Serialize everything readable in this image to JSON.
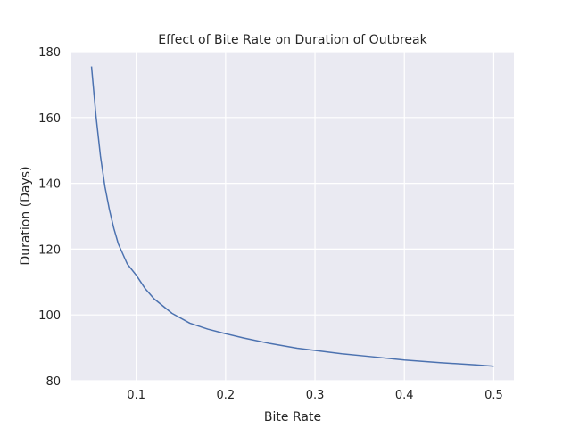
{
  "chart_data": {
    "type": "line",
    "title": "Effect of Bite Rate on Duration of Outbreak",
    "xlabel": "Bite Rate",
    "ylabel": "Duration (Days)",
    "xlim": [
      0.0275,
      0.5225
    ],
    "ylim": [
      80,
      180
    ],
    "xticks": [
      0.1,
      0.2,
      0.3,
      0.4,
      0.5
    ],
    "xtick_labels": [
      "0.1",
      "0.2",
      "0.3",
      "0.4",
      "0.5"
    ],
    "yticks": [
      80,
      100,
      120,
      140,
      160,
      180
    ],
    "ytick_labels": [
      "80",
      "100",
      "120",
      "140",
      "160",
      "180"
    ],
    "grid": true,
    "colors": {
      "background": "#eaeaf2",
      "grid": "#ffffff",
      "line": "#4c72b0"
    },
    "series": [
      {
        "x": [
          0.05,
          0.055,
          0.06,
          0.065,
          0.07,
          0.075,
          0.08,
          0.09,
          0.1,
          0.11,
          0.12,
          0.14,
          0.16,
          0.18,
          0.2,
          0.22,
          0.25,
          0.28,
          0.3,
          0.33,
          0.36,
          0.4,
          0.44,
          0.48,
          0.5
        ],
        "y": [
          175.5,
          160.5,
          148.3,
          139.0,
          132.0,
          126.3,
          121.6,
          115.5,
          112.1,
          108.0,
          104.9,
          100.5,
          97.5,
          95.7,
          94.3,
          93.0,
          91.3,
          89.9,
          89.2,
          88.2,
          87.4,
          86.3,
          85.5,
          84.8,
          84.4
        ]
      }
    ]
  }
}
